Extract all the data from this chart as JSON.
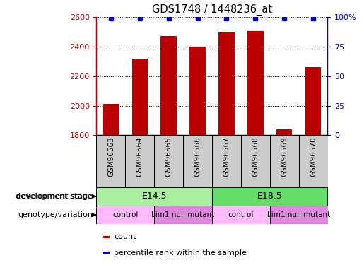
{
  "title": "GDS1748 / 1448236_at",
  "samples": [
    "GSM96563",
    "GSM96564",
    "GSM96565",
    "GSM96566",
    "GSM96567",
    "GSM96568",
    "GSM96569",
    "GSM96570"
  ],
  "counts": [
    2010,
    2320,
    2470,
    2400,
    2500,
    2505,
    1840,
    2260
  ],
  "percentile_rank": 99,
  "ylim_left": [
    1800,
    2600
  ],
  "ylim_right": [
    0,
    100
  ],
  "yticks_left": [
    1800,
    2000,
    2200,
    2400,
    2600
  ],
  "yticks_right": [
    0,
    25,
    50,
    75,
    100
  ],
  "bar_color": "#bb0000",
  "dot_color": "#0000bb",
  "bar_width": 0.55,
  "sample_bg_color": "#cccccc",
  "dev_stage_colors": [
    "#aaeea0",
    "#66dd66"
  ],
  "dev_stage_groups": [
    {
      "text": "E14.5",
      "start": 0,
      "end": 3
    },
    {
      "text": "E18.5",
      "start": 4,
      "end": 7
    }
  ],
  "geno_colors": [
    "#ffbbff",
    "#dd88dd"
  ],
  "geno_groups": [
    {
      "text": "control",
      "start": 0,
      "end": 1
    },
    {
      "text": "Lim1 null mutant",
      "start": 2,
      "end": 3
    },
    {
      "text": "control",
      "start": 4,
      "end": 5
    },
    {
      "text": "Lim1 null mutant",
      "start": 6,
      "end": 7
    }
  ],
  "dev_label": "development stage",
  "geno_label": "genotype/variation",
  "legend_items": [
    {
      "color": "#bb0000",
      "label": "count"
    },
    {
      "color": "#0000bb",
      "label": "percentile rank within the sample"
    }
  ]
}
